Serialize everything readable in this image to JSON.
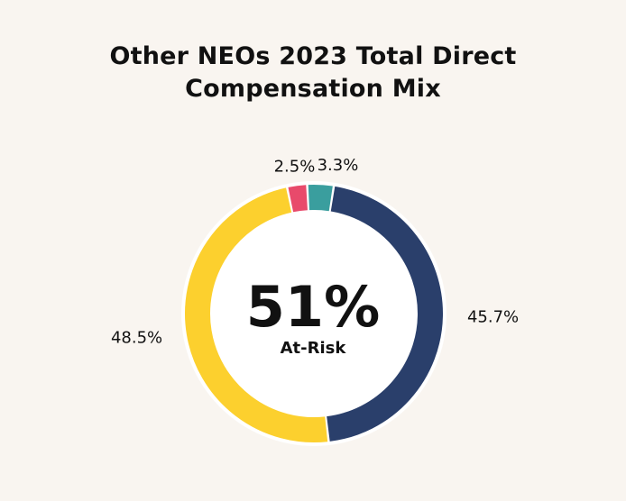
{
  "chart_data": {
    "type": "pie",
    "title_line1": "Other NEOs 2023 Total Direct",
    "title_line2": "Compensation Mix",
    "center_value": "51%",
    "center_label": "At-Risk",
    "slices": [
      {
        "label": "2.5%",
        "value": 2.5,
        "color": "#e84a6b"
      },
      {
        "label": "3.3%",
        "value": 3.3,
        "color": "#3a9e9e"
      },
      {
        "label": "45.7%",
        "value": 45.7,
        "color": "#2a3f6b"
      },
      {
        "label": "48.5%",
        "value": 48.5,
        "color": "#fcd02e"
      }
    ]
  }
}
